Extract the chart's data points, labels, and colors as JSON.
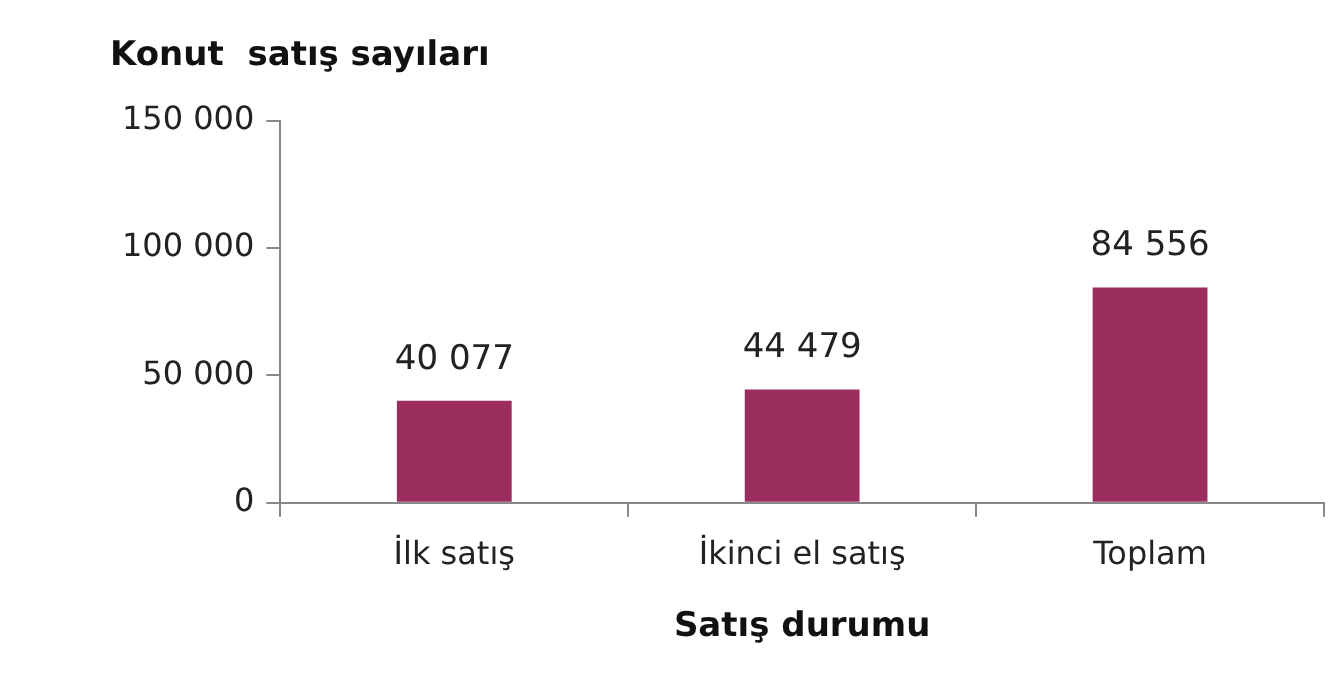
{
  "chart_data": {
    "type": "bar",
    "title": "Konut  satış sayıları",
    "xlabel": "Satış durumu",
    "categories": [
      "İlk satış",
      "İkinci el satış",
      "Toplam"
    ],
    "values": [
      40077,
      44479,
      84556
    ],
    "value_labels": [
      "40 077",
      "44 479",
      "84 556"
    ],
    "color": "#9b2d5f",
    "ylim": [
      0,
      150000
    ],
    "yticks": [
      {
        "value": 0,
        "label": "0"
      },
      {
        "value": 50000,
        "label": "50 000"
      },
      {
        "value": 100000,
        "label": "100 000"
      },
      {
        "value": 150000,
        "label": "150 000"
      }
    ],
    "grid": false,
    "legend": false
  }
}
